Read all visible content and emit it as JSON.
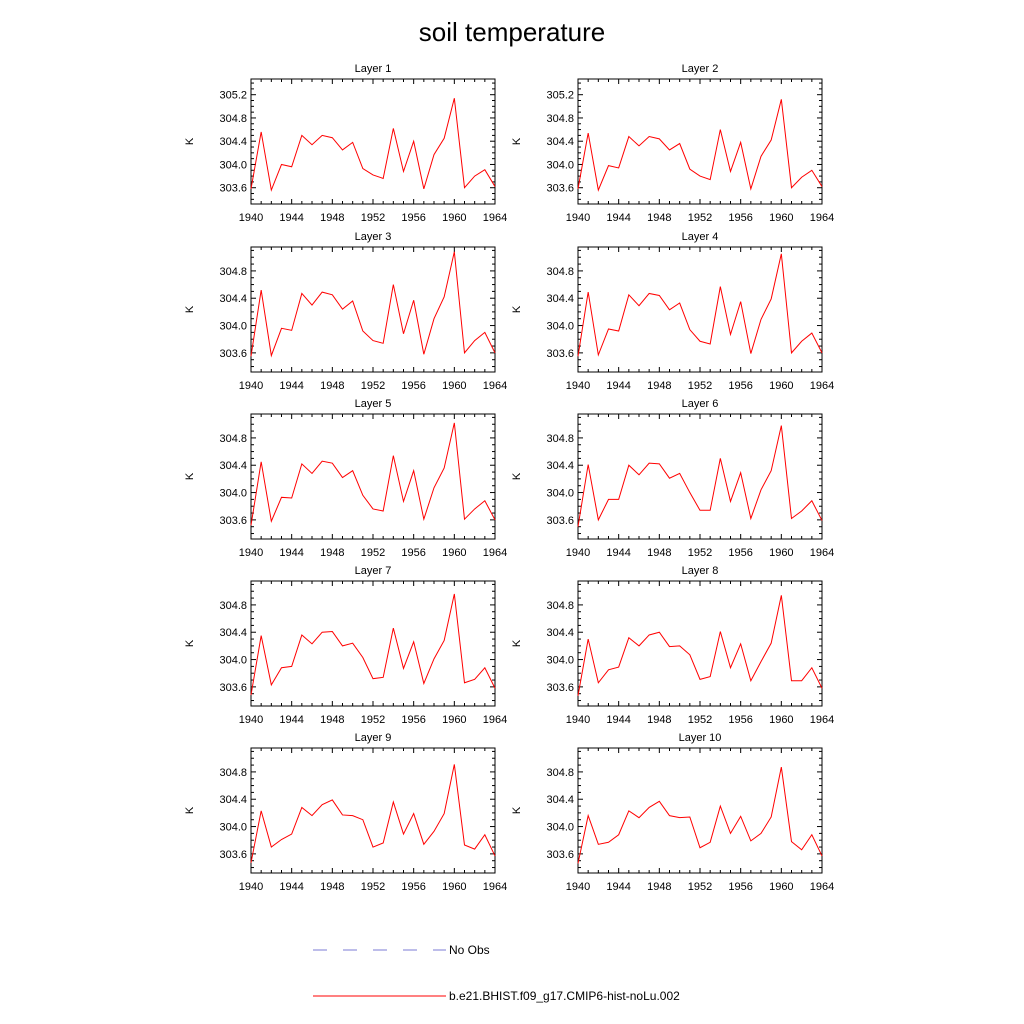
{
  "figure": {
    "title": "soil temperature",
    "legend": [
      {
        "label": "No Obs",
        "color": "#7b7bd6",
        "dash": "dashed"
      },
      {
        "label": "b.e21.BHIST.f09_g17.CMIP6-hist-noLu.002",
        "color": "#ff0000",
        "dash": "solid"
      }
    ]
  },
  "chart_data": [
    {
      "type": "line",
      "title": "Layer 1",
      "ylabel": "K",
      "xlim": [
        1940,
        1964
      ],
      "ylim": [
        303.32,
        305.47
      ],
      "xticks": [
        "1940",
        "1944",
        "1948",
        "1952",
        "1956",
        "1960",
        "1964"
      ],
      "yticks": [
        "303.6",
        "304.0",
        "304.4",
        "304.8",
        "305.2"
      ],
      "series": [
        {
          "color": "#ff0000",
          "x": [
            1940,
            1941,
            1942,
            1943,
            1944,
            1945,
            1946,
            1947,
            1948,
            1949,
            1950,
            1951,
            1952,
            1953,
            1954,
            1955,
            1956,
            1957,
            1958,
            1959,
            1960,
            1961,
            1962,
            1963,
            1964
          ],
          "values": [
            303.58,
            304.56,
            303.56,
            304.0,
            303.96,
            304.5,
            304.34,
            304.5,
            304.46,
            304.25,
            304.38,
            303.93,
            303.82,
            303.76,
            304.62,
            303.88,
            304.4,
            303.58,
            304.17,
            304.45,
            305.14,
            303.6,
            303.8,
            303.91,
            303.62
          ]
        }
      ]
    },
    {
      "type": "line",
      "title": "Layer 2",
      "ylabel": "K",
      "xlim": [
        1940,
        1964
      ],
      "ylim": [
        303.32,
        305.47
      ],
      "xticks": [
        "1940",
        "1944",
        "1948",
        "1952",
        "1956",
        "1960",
        "1964"
      ],
      "yticks": [
        "303.6",
        "304.0",
        "304.4",
        "304.8",
        "305.2"
      ],
      "series": [
        {
          "color": "#ff0000",
          "x": [
            1940,
            1941,
            1942,
            1943,
            1944,
            1945,
            1946,
            1947,
            1948,
            1949,
            1950,
            1951,
            1952,
            1953,
            1954,
            1955,
            1956,
            1957,
            1958,
            1959,
            1960,
            1961,
            1962,
            1963,
            1964
          ],
          "values": [
            303.58,
            304.54,
            303.56,
            303.98,
            303.94,
            304.48,
            304.32,
            304.48,
            304.44,
            304.25,
            304.36,
            303.92,
            303.8,
            303.74,
            304.6,
            303.88,
            304.38,
            303.58,
            304.14,
            304.42,
            305.12,
            303.6,
            303.78,
            303.9,
            303.62
          ]
        }
      ]
    },
    {
      "type": "line",
      "title": "Layer 3",
      "ylabel": "K",
      "xlim": [
        1940,
        1964
      ],
      "ylim": [
        303.32,
        305.15
      ],
      "xticks": [
        "1940",
        "1944",
        "1948",
        "1952",
        "1956",
        "1960",
        "1964"
      ],
      "yticks": [
        "303.6",
        "304.0",
        "304.4",
        "304.8"
      ],
      "series": [
        {
          "color": "#ff0000",
          "x": [
            1940,
            1941,
            1942,
            1943,
            1944,
            1945,
            1946,
            1947,
            1948,
            1949,
            1950,
            1951,
            1952,
            1953,
            1954,
            1955,
            1956,
            1957,
            1958,
            1959,
            1960,
            1961,
            1962,
            1963,
            1964
          ],
          "values": [
            303.55,
            304.52,
            303.56,
            303.96,
            303.93,
            304.47,
            304.3,
            304.49,
            304.45,
            304.24,
            304.36,
            303.92,
            303.78,
            303.74,
            304.6,
            303.88,
            304.37,
            303.58,
            304.1,
            304.42,
            305.08,
            303.6,
            303.78,
            303.9,
            303.6
          ]
        }
      ]
    },
    {
      "type": "line",
      "title": "Layer 4",
      "ylabel": "K",
      "xlim": [
        1940,
        1964
      ],
      "ylim": [
        303.32,
        305.15
      ],
      "xticks": [
        "1940",
        "1944",
        "1948",
        "1952",
        "1956",
        "1960",
        "1964"
      ],
      "yticks": [
        "303.6",
        "304.0",
        "304.4",
        "304.8"
      ],
      "series": [
        {
          "color": "#ff0000",
          "x": [
            1940,
            1941,
            1942,
            1943,
            1944,
            1945,
            1946,
            1947,
            1948,
            1949,
            1950,
            1951,
            1952,
            1953,
            1954,
            1955,
            1956,
            1957,
            1958,
            1959,
            1960,
            1961,
            1962,
            1963,
            1964
          ],
          "values": [
            303.55,
            304.49,
            303.57,
            303.95,
            303.92,
            304.45,
            304.29,
            304.47,
            304.44,
            304.23,
            304.33,
            303.94,
            303.77,
            303.73,
            304.57,
            303.87,
            304.35,
            303.59,
            304.09,
            304.39,
            305.05,
            303.6,
            303.77,
            303.89,
            303.6
          ]
        }
      ]
    },
    {
      "type": "line",
      "title": "Layer 5",
      "ylabel": "K",
      "xlim": [
        1940,
        1964
      ],
      "ylim": [
        303.32,
        305.15
      ],
      "xticks": [
        "1940",
        "1944",
        "1948",
        "1952",
        "1956",
        "1960",
        "1964"
      ],
      "yticks": [
        "303.6",
        "304.0",
        "304.4",
        "304.8"
      ],
      "series": [
        {
          "color": "#ff0000",
          "x": [
            1940,
            1941,
            1942,
            1943,
            1944,
            1945,
            1946,
            1947,
            1948,
            1949,
            1950,
            1951,
            1952,
            1953,
            1954,
            1955,
            1956,
            1957,
            1958,
            1959,
            1960,
            1961,
            1962,
            1963,
            1964
          ],
          "values": [
            303.52,
            304.45,
            303.58,
            303.93,
            303.92,
            304.42,
            304.28,
            304.46,
            304.43,
            304.22,
            304.32,
            303.96,
            303.76,
            303.73,
            304.54,
            303.87,
            304.32,
            303.61,
            304.07,
            304.36,
            305.02,
            303.61,
            303.76,
            303.88,
            303.6
          ]
        }
      ]
    },
    {
      "type": "line",
      "title": "Layer 6",
      "ylabel": "K",
      "xlim": [
        1940,
        1964
      ],
      "ylim": [
        303.32,
        305.15
      ],
      "xticks": [
        "1940",
        "1944",
        "1948",
        "1952",
        "1956",
        "1960",
        "1964"
      ],
      "yticks": [
        "303.6",
        "304.0",
        "304.4",
        "304.8"
      ],
      "series": [
        {
          "color": "#ff0000",
          "x": [
            1940,
            1941,
            1942,
            1943,
            1944,
            1945,
            1946,
            1947,
            1948,
            1949,
            1950,
            1951,
            1952,
            1953,
            1954,
            1955,
            1956,
            1957,
            1958,
            1959,
            1960,
            1961,
            1962,
            1963,
            1964
          ],
          "values": [
            303.5,
            304.41,
            303.6,
            303.9,
            303.9,
            304.4,
            304.26,
            304.43,
            304.42,
            304.21,
            304.28,
            304.0,
            303.74,
            303.74,
            304.5,
            303.87,
            304.29,
            303.62,
            304.04,
            304.32,
            304.98,
            303.62,
            303.73,
            303.88,
            303.59
          ]
        }
      ]
    },
    {
      "type": "line",
      "title": "Layer 7",
      "ylabel": "K",
      "xlim": [
        1940,
        1964
      ],
      "ylim": [
        303.32,
        305.15
      ],
      "xticks": [
        "1940",
        "1944",
        "1948",
        "1952",
        "1956",
        "1960",
        "1964"
      ],
      "yticks": [
        "303.6",
        "304.0",
        "304.4",
        "304.8"
      ],
      "series": [
        {
          "color": "#ff0000",
          "x": [
            1940,
            1941,
            1942,
            1943,
            1944,
            1945,
            1946,
            1947,
            1948,
            1949,
            1950,
            1951,
            1952,
            1953,
            1954,
            1955,
            1956,
            1957,
            1958,
            1959,
            1960,
            1961,
            1962,
            1963,
            1964
          ],
          "values": [
            303.48,
            304.35,
            303.63,
            303.88,
            303.9,
            304.36,
            304.23,
            304.4,
            304.41,
            304.2,
            304.24,
            304.03,
            303.72,
            303.74,
            304.46,
            303.87,
            304.26,
            303.65,
            304.01,
            304.28,
            304.96,
            303.66,
            303.71,
            303.88,
            303.58
          ]
        }
      ]
    },
    {
      "type": "line",
      "title": "Layer 8",
      "ylabel": "K",
      "xlim": [
        1940,
        1964
      ],
      "ylim": [
        303.32,
        305.15
      ],
      "xticks": [
        "1940",
        "1944",
        "1948",
        "1952",
        "1956",
        "1960",
        "1964"
      ],
      "yticks": [
        "303.6",
        "304.0",
        "304.4",
        "304.8"
      ],
      "series": [
        {
          "color": "#ff0000",
          "x": [
            1940,
            1941,
            1942,
            1943,
            1944,
            1945,
            1946,
            1947,
            1948,
            1949,
            1950,
            1951,
            1952,
            1953,
            1954,
            1955,
            1956,
            1957,
            1958,
            1959,
            1960,
            1961,
            1962,
            1963,
            1964
          ],
          "values": [
            303.47,
            304.3,
            303.66,
            303.85,
            303.89,
            304.32,
            304.2,
            304.36,
            304.4,
            304.19,
            304.2,
            304.07,
            303.71,
            303.75,
            304.41,
            303.88,
            304.23,
            303.69,
            303.97,
            304.24,
            304.94,
            303.69,
            303.69,
            303.88,
            303.58
          ]
        }
      ]
    },
    {
      "type": "line",
      "title": "Layer 9",
      "ylabel": "K",
      "xlim": [
        1940,
        1964
      ],
      "ylim": [
        303.32,
        305.15
      ],
      "xticks": [
        "1940",
        "1944",
        "1948",
        "1952",
        "1956",
        "1960",
        "1964"
      ],
      "yticks": [
        "303.6",
        "304.0",
        "304.4",
        "304.8"
      ],
      "series": [
        {
          "color": "#ff0000",
          "x": [
            1940,
            1941,
            1942,
            1943,
            1944,
            1945,
            1946,
            1947,
            1948,
            1949,
            1950,
            1951,
            1952,
            1953,
            1954,
            1955,
            1956,
            1957,
            1958,
            1959,
            1960,
            1961,
            1962,
            1963,
            1964
          ],
          "values": [
            303.47,
            304.23,
            303.7,
            303.81,
            303.89,
            304.28,
            304.16,
            304.32,
            304.39,
            304.17,
            304.16,
            304.1,
            303.7,
            303.76,
            304.36,
            303.89,
            304.19,
            303.74,
            303.93,
            304.19,
            304.91,
            303.73,
            303.67,
            303.88,
            303.57
          ]
        }
      ]
    },
    {
      "type": "line",
      "title": "Layer 10",
      "ylabel": "K",
      "xlim": [
        1940,
        1964
      ],
      "ylim": [
        303.32,
        305.15
      ],
      "xticks": [
        "1940",
        "1944",
        "1948",
        "1952",
        "1956",
        "1960",
        "1964"
      ],
      "yticks": [
        "303.6",
        "304.0",
        "304.4",
        "304.8"
      ],
      "series": [
        {
          "color": "#ff0000",
          "x": [
            1940,
            1941,
            1942,
            1943,
            1944,
            1945,
            1946,
            1947,
            1948,
            1949,
            1950,
            1951,
            1952,
            1953,
            1954,
            1955,
            1956,
            1957,
            1958,
            1959,
            1960,
            1961,
            1962,
            1963,
            1964
          ],
          "values": [
            303.46,
            304.16,
            303.74,
            303.77,
            303.88,
            304.23,
            304.13,
            304.28,
            304.37,
            304.16,
            304.13,
            304.14,
            303.69,
            303.77,
            304.3,
            303.9,
            304.15,
            303.79,
            303.9,
            304.14,
            304.87,
            303.78,
            303.66,
            303.88,
            303.57
          ]
        }
      ]
    }
  ]
}
